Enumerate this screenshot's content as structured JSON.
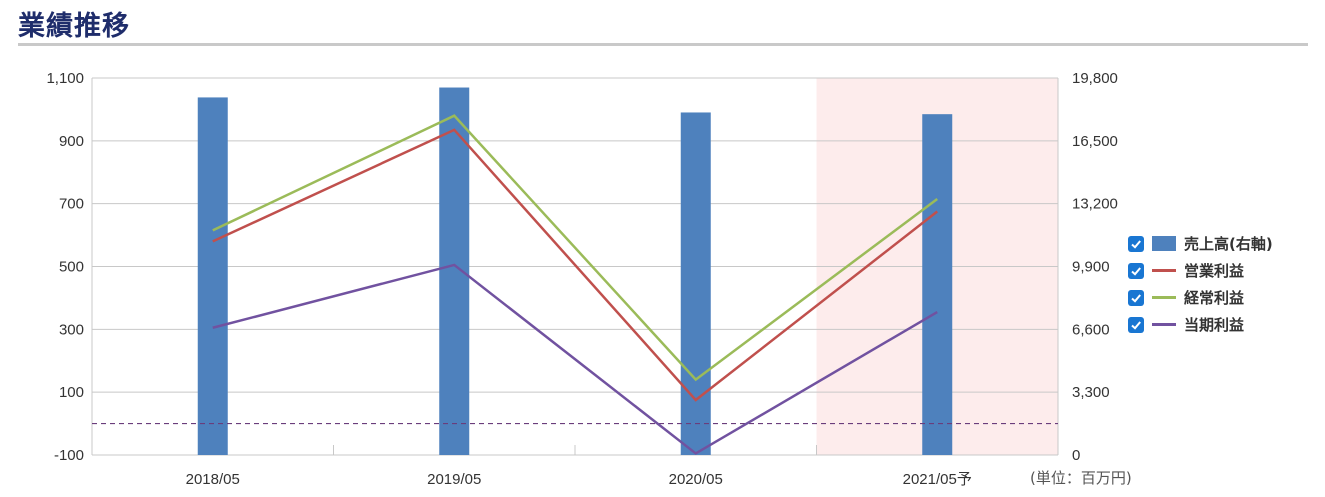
{
  "title": "業績推移",
  "unit_label": "(単位：百万円)",
  "chart_data": {
    "type": "bar",
    "categories": [
      "2018/05",
      "2019/05",
      "2020/05",
      "2021/05予"
    ],
    "forecast_category": "2021/05予",
    "y_left": {
      "ticks": [
        "1,100",
        "900",
        "700",
        "500",
        "300",
        "100",
        "-100"
      ],
      "range": [
        -100,
        1100
      ]
    },
    "y_right": {
      "ticks": [
        "19,800",
        "16,500",
        "13,200",
        "9,900",
        "6,600",
        "3,300",
        "0"
      ],
      "range": [
        0,
        19800
      ]
    },
    "reference_line_value": 0,
    "series": [
      {
        "name": "売上高(右軸)",
        "type": "bar",
        "axis": "right",
        "color": "#4e81bd",
        "values": [
          18780,
          19300,
          17990,
          17900
        ]
      },
      {
        "name": "営業利益",
        "type": "line",
        "axis": "left",
        "color": "#c0504d",
        "values": [
          580,
          935,
          75,
          675
        ]
      },
      {
        "name": "経常利益",
        "type": "line",
        "axis": "left",
        "color": "#9bbb59",
        "values": [
          615,
          980,
          140,
          715
        ]
      },
      {
        "name": "当期利益",
        "type": "line",
        "axis": "left",
        "color": "#7152a0",
        "values": [
          305,
          505,
          -95,
          355
        ]
      }
    ],
    "forecast_shading_color": "#fdecec",
    "grid": true,
    "legend_position": "right"
  }
}
